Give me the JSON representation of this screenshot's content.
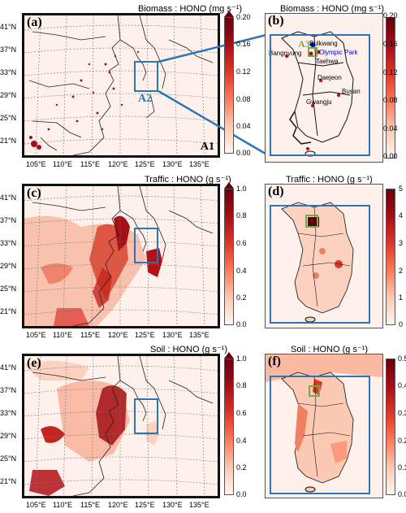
{
  "panels": [
    {
      "id": "a",
      "label": "(a)",
      "title": "Biomass : HONO (mg s⁻¹)",
      "cbar_ticks": [
        "0.20",
        "0.16",
        "0.12",
        "0.08",
        "0.04",
        "0.00"
      ]
    },
    {
      "id": "b",
      "label": "(b)",
      "title": "Biomass : HONO (mg s⁻¹)",
      "cbar_ticks": [
        "0.20",
        "0.16",
        "0.12",
        "0.08",
        "0.04",
        "0.00"
      ]
    },
    {
      "id": "c",
      "label": "(c)",
      "title": "Traffic : HONO (g s⁻¹)",
      "cbar_ticks": [
        "1.0",
        "0.8",
        "0.6",
        "0.4",
        "0.2",
        "0.0"
      ]
    },
    {
      "id": "d",
      "label": "(d)",
      "title": "Traffic : HONO (g s⁻¹)",
      "cbar_ticks": [
        "5",
        "4",
        "3",
        "2",
        "1",
        "0"
      ]
    },
    {
      "id": "e",
      "label": "(e)",
      "title": "Soil : HONO (g s⁻¹)",
      "cbar_ticks": [
        "1.0",
        "0.8",
        "0.6",
        "0.4",
        "0.2",
        "0.0"
      ]
    },
    {
      "id": "f",
      "label": "(f)",
      "title": "Soil : HONO (g s⁻¹)",
      "cbar_ticks": [
        "0.5",
        "0.4",
        "0.3",
        "0.2",
        "0.1",
        "0.0"
      ]
    }
  ],
  "lat_ticks": [
    "41°N",
    "37°N",
    "33°N",
    "29°N",
    "25°N",
    "21°N"
  ],
  "lon_ticks": [
    "105°E",
    "110°E",
    "115°E",
    "120°E",
    "125°E",
    "130°E",
    "135°E"
  ],
  "domain_labels": {
    "a1": "A1",
    "a2": "A2",
    "a3": "A3"
  },
  "cities": [
    "Bulkwang",
    "Olympic Park",
    "Taehwa",
    "Bangnyung",
    "Daejeon",
    "Busan",
    "Gwangju"
  ],
  "colors": {
    "colormap": [
      "#fff5f0",
      "#fcc9b2",
      "#fb7b5b",
      "#e0352b",
      "#a50f15",
      "#67000d"
    ],
    "domain_box": "#2e75b6",
    "inner_box": "#70ad47",
    "olympic_park_label": "#0000cc"
  }
}
